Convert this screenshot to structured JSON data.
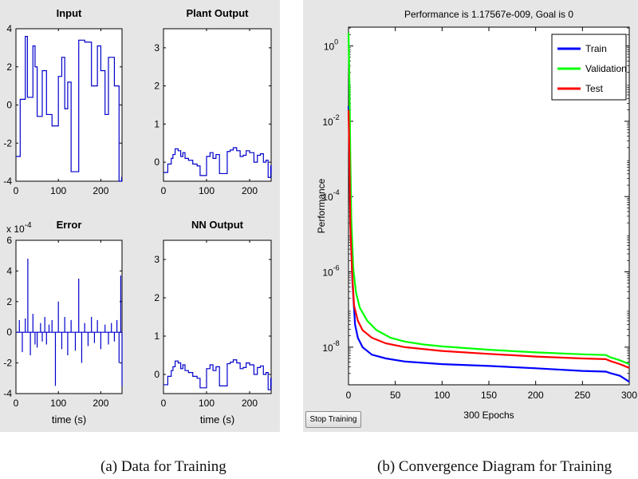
{
  "panel_a": {
    "plots": [
      {
        "title": "Input",
        "ylim": [
          -4,
          4
        ],
        "yticks": [
          "4",
          "2",
          "0",
          "-2",
          "-4"
        ],
        "xticks": [
          "0",
          "100",
          "200"
        ],
        "xlabel": ""
      },
      {
        "title": "Plant Output",
        "ylim": [
          -0.5,
          3.5
        ],
        "yticks": [
          "3",
          "2",
          "1",
          "0"
        ],
        "xticks": [
          "0",
          "100",
          "200"
        ],
        "xlabel": ""
      },
      {
        "title": "Error",
        "ylim": [
          -4,
          6
        ],
        "yticks": [
          "6",
          "4",
          "2",
          "0",
          "-2",
          "-4"
        ],
        "xticks": [
          "0",
          "100",
          "200"
        ],
        "xlabel": "time (s)",
        "exponent": "x 10"
      },
      {
        "title": "NN Output",
        "ylim": [
          -0.5,
          3.5
        ],
        "yticks": [
          "3",
          "2",
          "1",
          "0"
        ],
        "xticks": [
          "0",
          "100",
          "200"
        ],
        "xlabel": "time (s)"
      }
    ],
    "error_exponent_power": "-4"
  },
  "panel_b": {
    "title": "Performance is 1.17567e-009, Goal is 0",
    "ylabel": "Performance",
    "xlabel": "300 Epochs",
    "ytick_base": "10",
    "ytick_powers": [
      "0",
      "-2",
      "-4",
      "-6",
      "-8"
    ],
    "xticks": [
      "0",
      "50",
      "100",
      "150",
      "200",
      "250",
      "300"
    ],
    "stop_button": "Stop Training"
  },
  "captions": {
    "a": "(a) Data for Training",
    "b": "(b) Convergence Diagram for Training"
  },
  "chart_data": [
    {
      "type": "line",
      "title": "Input",
      "xlim": [
        0,
        250
      ],
      "ylim": [
        -4,
        4
      ],
      "series": [
        {
          "name": "Input",
          "color": "#0000cc",
          "step": true,
          "x": [
            0,
            5,
            10,
            18,
            22,
            27,
            34,
            40,
            45,
            50,
            58,
            62,
            68,
            72,
            78,
            85,
            93,
            100,
            108,
            115,
            122,
            130,
            140,
            148,
            155,
            162,
            170,
            178,
            185,
            192,
            200,
            210,
            218,
            225,
            232,
            238,
            243,
            247,
            249,
            250
          ],
          "y": [
            -2.7,
            -2.7,
            0.3,
            0.3,
            3.6,
            0.4,
            0.4,
            3.1,
            2.0,
            -0.6,
            -0.6,
            1.8,
            1.8,
            -0.5,
            -0.5,
            -1.1,
            -1.1,
            1.5,
            2.5,
            -0.2,
            1.2,
            -3.5,
            -3.5,
            3.4,
            3.4,
            3.3,
            3.3,
            1.0,
            1.0,
            3.1,
            1.8,
            -0.5,
            2.5,
            2.5,
            1.0,
            1.0,
            -4.0,
            -4.0,
            -3.8,
            -3.8
          ]
        }
      ]
    },
    {
      "type": "line",
      "title": "Plant Output",
      "xlim": [
        0,
        250
      ],
      "ylim": [
        -0.5,
        3.5
      ],
      "series": [
        {
          "name": "Plant Output",
          "color": "#0000cc",
          "step": true,
          "x": [
            0,
            5,
            10,
            18,
            22,
            27,
            34,
            40,
            45,
            50,
            58,
            62,
            68,
            72,
            78,
            85,
            93,
            100,
            108,
            115,
            122,
            130,
            140,
            148,
            155,
            162,
            170,
            178,
            185,
            192,
            200,
            210,
            218,
            225,
            232,
            238,
            243,
            247,
            249,
            250
          ],
          "y": [
            -0.27,
            -0.27,
            -0.05,
            0.1,
            0.2,
            0.35,
            0.3,
            0.15,
            0.25,
            0.1,
            0.05,
            0.05,
            -0.05,
            -0.05,
            -0.1,
            -0.35,
            -0.35,
            0.15,
            0.25,
            0.1,
            0.2,
            -0.3,
            -0.3,
            0.28,
            0.32,
            0.38,
            0.3,
            0.15,
            0.18,
            0.3,
            0.25,
            0.0,
            0.18,
            0.22,
            0.0,
            0.05,
            -0.4,
            -0.4,
            -0.1,
            -0.3
          ]
        }
      ]
    },
    {
      "type": "line",
      "title": "Error",
      "xlim": [
        0,
        250
      ],
      "ylim": [
        -4,
        6
      ],
      "yscale": "x 10^-4",
      "series": [
        {
          "name": "Error",
          "color": "#0000cc",
          "spikes": true,
          "x": [
            0,
            8,
            15,
            22,
            28,
            34,
            40,
            45,
            50,
            58,
            62,
            68,
            72,
            78,
            85,
            93,
            100,
            108,
            115,
            122,
            130,
            140,
            148,
            155,
            162,
            170,
            178,
            185,
            192,
            200,
            210,
            218,
            225,
            232,
            238,
            243,
            247,
            250
          ],
          "y": [
            0,
            0.8,
            -1.3,
            0.9,
            4.8,
            -1.5,
            1.2,
            -0.8,
            -1.0,
            0.6,
            -0.6,
            1.0,
            -0.8,
            0.5,
            0.8,
            -3.5,
            2.0,
            -1.1,
            1.0,
            -1.5,
            0.8,
            -1.2,
            3.5,
            -2.0,
            0.6,
            -0.9,
            1.0,
            -0.7,
            0.8,
            -1.1,
            0.5,
            -0.8,
            0.6,
            -0.6,
            0.8,
            -2.0,
            3.7,
            -3.5
          ]
        }
      ]
    },
    {
      "type": "line",
      "title": "NN Output",
      "xlim": [
        0,
        250
      ],
      "ylim": [
        -0.5,
        3.5
      ],
      "series": [
        {
          "name": "NN Output",
          "color": "#0000cc",
          "step": true,
          "x": [
            0,
            5,
            10,
            18,
            22,
            27,
            34,
            40,
            45,
            50,
            58,
            62,
            68,
            72,
            78,
            85,
            93,
            100,
            108,
            115,
            122,
            130,
            140,
            148,
            155,
            162,
            170,
            178,
            185,
            192,
            200,
            210,
            218,
            225,
            232,
            238,
            243,
            247,
            249,
            250
          ],
          "y": [
            -0.27,
            -0.27,
            -0.05,
            0.1,
            0.2,
            0.35,
            0.3,
            0.15,
            0.25,
            0.1,
            0.05,
            0.05,
            -0.05,
            -0.05,
            -0.1,
            -0.35,
            -0.35,
            0.15,
            0.25,
            0.1,
            0.2,
            -0.3,
            -0.3,
            0.28,
            0.32,
            0.38,
            0.3,
            0.15,
            0.18,
            0.3,
            0.25,
            0.0,
            0.18,
            0.22,
            0.0,
            0.05,
            -0.4,
            -0.4,
            -0.1,
            -0.3
          ]
        }
      ]
    },
    {
      "type": "line",
      "title": "Performance is 1.17567e-009, Goal is 0",
      "xlabel": "300 Epochs",
      "ylabel": "Performance",
      "yscale": "log",
      "xlim": [
        0,
        300
      ],
      "ylim_log10": [
        -9,
        0.5
      ],
      "legend": [
        "Train",
        "Validation",
        "Test"
      ],
      "legend_position": "top-right",
      "series": [
        {
          "name": "Train",
          "color": "#0000ff",
          "x": [
            0,
            1,
            2,
            4,
            7,
            10,
            15,
            25,
            40,
            60,
            100,
            150,
            200,
            250,
            275,
            280,
            290,
            300
          ],
          "y_log10": [
            -1.6,
            -2.5,
            -4.5,
            -6.2,
            -7.4,
            -7.75,
            -8.0,
            -8.2,
            -8.3,
            -8.38,
            -8.45,
            -8.5,
            -8.56,
            -8.63,
            -8.65,
            -8.69,
            -8.76,
            -8.92
          ]
        },
        {
          "name": "Validation",
          "color": "#00ff00",
          "x": [
            0,
            1,
            2,
            3,
            5,
            8,
            12,
            20,
            30,
            45,
            60,
            80,
            100,
            150,
            200,
            250,
            275,
            280,
            290,
            300
          ],
          "y_log10": [
            0.35,
            -1.0,
            -3.0,
            -4.6,
            -5.9,
            -6.55,
            -6.95,
            -7.3,
            -7.55,
            -7.75,
            -7.85,
            -7.93,
            -7.98,
            -8.07,
            -8.14,
            -8.19,
            -8.21,
            -8.27,
            -8.35,
            -8.45
          ]
        },
        {
          "name": "Test",
          "color": "#ff0000",
          "x": [
            0,
            1,
            2,
            4,
            6,
            10,
            15,
            25,
            40,
            60,
            100,
            150,
            200,
            250,
            275,
            280,
            290,
            300
          ],
          "y_log10": [
            -1.7,
            -3.0,
            -4.8,
            -6.1,
            -6.9,
            -7.3,
            -7.55,
            -7.75,
            -7.9,
            -8.0,
            -8.1,
            -8.18,
            -8.25,
            -8.3,
            -8.32,
            -8.37,
            -8.45,
            -8.55
          ]
        }
      ]
    }
  ]
}
